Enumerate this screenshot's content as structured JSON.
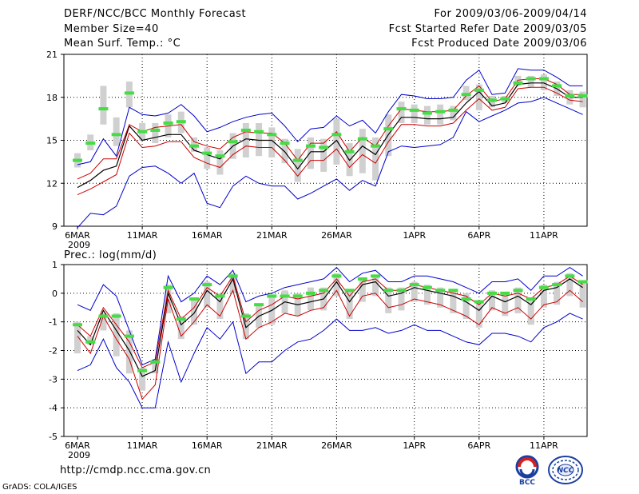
{
  "header": {
    "left_line1": "DERF/NCC/BCC Monthly Forecast",
    "left_line2": "Member Size=40",
    "left_line3": "Mean Surf. Temp.: °C",
    "right_line1": "For 2009/03/06-2009/04/14",
    "right_line2": "Fcst Started Refer Date 2009/03/05",
    "right_line3": "Fcst Produced Date 2009/03/06"
  },
  "footer": {
    "url": "http://cmdp.ncc.cma.gov.cn",
    "credit": "GrADS: COLA/IGES",
    "logo_left_label": "BCC",
    "logo_right_label": "NCC"
  },
  "colors": {
    "ensemble_mean": "#000000",
    "red_band": "#cc0000",
    "blue_envelope": "#0000cc",
    "box": "#d0d0d0",
    "marker": "#44dd44",
    "grid": "#000000"
  },
  "chart_data": [
    {
      "type": "line",
      "title": "Mean Surf. Temp.: °C",
      "x_dates": [
        "6MAR",
        "7MAR",
        "8MAR",
        "9MAR",
        "10MAR",
        "11MAR",
        "12MAR",
        "13MAR",
        "14MAR",
        "15MAR",
        "16MAR",
        "17MAR",
        "18MAR",
        "19MAR",
        "20MAR",
        "21MAR",
        "22MAR",
        "23MAR",
        "24MAR",
        "25MAR",
        "26MAR",
        "27MAR",
        "28MAR",
        "29MAR",
        "30MAR",
        "31MAR",
        "1APR",
        "2APR",
        "3APR",
        "4APR",
        "5APR",
        "6APR",
        "7APR",
        "8APR",
        "9APR",
        "10APR",
        "11APR",
        "12APR",
        "13APR",
        "14APR"
      ],
      "tick_labels": [
        "6MAR",
        "11MAR",
        "16MAR",
        "21MAR",
        "26MAR",
        "1APR",
        "6APR",
        "11APR"
      ],
      "year_label": "2009",
      "ylim": [
        9,
        21
      ],
      "yticks": [
        9,
        12,
        15,
        18,
        21
      ],
      "series": [
        {
          "name": "ensemble-mean",
          "values": [
            11.7,
            12.2,
            12.9,
            13.2,
            16.0,
            15.0,
            15.2,
            15.4,
            15.4,
            14.3,
            14.0,
            13.7,
            14.6,
            15.1,
            15.0,
            15.0,
            14.2,
            13.0,
            14.2,
            14.2,
            15.0,
            13.6,
            14.6,
            14.0,
            15.4,
            16.6,
            16.6,
            16.5,
            16.5,
            16.6,
            17.6,
            18.4,
            17.4,
            17.6,
            18.9,
            19.0,
            19.0,
            18.6,
            18.0,
            18.0
          ]
        },
        {
          "name": "upper-red",
          "values": [
            12.3,
            12.7,
            13.7,
            13.7,
            16.1,
            15.6,
            15.9,
            16.0,
            16.1,
            14.9,
            14.6,
            14.4,
            15.2,
            15.6,
            15.5,
            15.5,
            14.8,
            13.6,
            14.8,
            14.8,
            15.6,
            14.2,
            15.2,
            14.6,
            16.0,
            17.2,
            17.1,
            17.0,
            17.0,
            17.1,
            18.1,
            18.8,
            17.7,
            17.9,
            19.2,
            19.3,
            19.3,
            18.9,
            18.2,
            18.2
          ]
        },
        {
          "name": "lower-red",
          "values": [
            11.2,
            11.6,
            12.1,
            12.6,
            15.5,
            14.5,
            14.6,
            14.9,
            14.9,
            13.8,
            13.4,
            13.1,
            14.0,
            14.6,
            14.5,
            14.5,
            13.6,
            12.5,
            13.6,
            13.6,
            14.4,
            13.1,
            14.0,
            13.4,
            14.9,
            16.1,
            16.1,
            16.0,
            16.0,
            16.2,
            17.1,
            17.9,
            17.1,
            17.3,
            18.6,
            18.7,
            18.7,
            18.3,
            17.8,
            17.7
          ]
        },
        {
          "name": "max-envelope",
          "values": [
            13.3,
            13.5,
            15.1,
            13.9,
            17.3,
            16.8,
            16.7,
            16.9,
            17.5,
            16.7,
            15.6,
            15.9,
            16.3,
            16.6,
            16.8,
            16.9,
            16.0,
            14.9,
            15.8,
            15.9,
            16.7,
            16.0,
            16.4,
            15.5,
            17.0,
            18.2,
            18.1,
            17.9,
            17.9,
            18.0,
            19.2,
            19.9,
            18.2,
            18.3,
            20.0,
            19.9,
            19.9,
            19.4,
            18.8,
            18.8
          ]
        },
        {
          "name": "min-envelope",
          "values": [
            8.9,
            9.9,
            9.8,
            10.4,
            12.5,
            13.1,
            13.2,
            12.7,
            12.0,
            12.7,
            10.6,
            10.3,
            11.8,
            12.5,
            12.0,
            11.8,
            11.8,
            10.9,
            11.3,
            11.8,
            12.3,
            11.5,
            12.2,
            11.8,
            14.2,
            14.6,
            14.5,
            14.6,
            14.7,
            15.2,
            17.0,
            16.3,
            16.7,
            17.1,
            17.6,
            17.7,
            18.0,
            17.6,
            17.2,
            16.8
          ]
        }
      ],
      "boxes": {
        "q1": [
          13.1,
          14.3,
          16.1,
          14.6,
          17.3,
          15.0,
          14.8,
          15.2,
          15.5,
          14.2,
          13.0,
          12.6,
          13.7,
          13.8,
          13.9,
          13.8,
          13.4,
          12.1,
          13.0,
          12.8,
          13.3,
          12.5,
          12.7,
          12.2,
          13.9,
          16.2,
          16.2,
          16.1,
          16.1,
          16.4,
          17.8,
          17.1,
          17.3,
          17.6,
          18.8,
          18.7,
          18.5,
          18.1,
          17.5,
          17.3
        ],
        "q3": [
          14.1,
          15.4,
          18.8,
          16.6,
          19.1,
          16.2,
          16.2,
          16.8,
          17.0,
          15.2,
          14.5,
          14.3,
          15.5,
          16.2,
          16.2,
          15.9,
          15.1,
          14.4,
          15.2,
          15.1,
          16.5,
          14.8,
          15.8,
          15.2,
          16.8,
          17.7,
          17.5,
          17.4,
          17.5,
          17.4,
          18.8,
          18.9,
          18.1,
          18.1,
          19.5,
          19.5,
          19.6,
          19.1,
          18.5,
          18.4
        ]
      },
      "markers": [
        13.6,
        14.8,
        17.2,
        15.4,
        18.3,
        15.6,
        15.7,
        16.2,
        16.3,
        14.6,
        14.1,
        13.9,
        14.9,
        15.7,
        15.6,
        15.4,
        14.8,
        13.6,
        14.6,
        14.5,
        15.4,
        14.2,
        15.1,
        14.6,
        15.8,
        17.2,
        17.1,
        16.9,
        17.0,
        17.1,
        18.2,
        18.5,
        17.8,
        17.9,
        19.0,
        19.3,
        19.3,
        18.8,
        18.1,
        18.1
      ]
    },
    {
      "type": "line",
      "title": "Prec.: log(mm/d)",
      "x_dates": [
        "6MAR",
        "7MAR",
        "8MAR",
        "9MAR",
        "10MAR",
        "11MAR",
        "12MAR",
        "13MAR",
        "14MAR",
        "15MAR",
        "16MAR",
        "17MAR",
        "18MAR",
        "19MAR",
        "20MAR",
        "21MAR",
        "22MAR",
        "23MAR",
        "24MAR",
        "25MAR",
        "26MAR",
        "27MAR",
        "28MAR",
        "29MAR",
        "30MAR",
        "31MAR",
        "1APR",
        "2APR",
        "3APR",
        "4APR",
        "5APR",
        "6APR",
        "7APR",
        "8APR",
        "9APR",
        "10APR",
        "11APR",
        "12APR",
        "13APR",
        "14APR"
      ],
      "tick_labels": [
        "6MAR",
        "11MAR",
        "16MAR",
        "21MAR",
        "26MAR",
        "1APR",
        "6APR",
        "11APR"
      ],
      "year_label": "2009",
      "ylim": [
        -5,
        1
      ],
      "yticks": [
        -5,
        -4,
        -3,
        -2,
        -1,
        0,
        1
      ],
      "series": [
        {
          "name": "ensemble-mean",
          "values": [
            -1.3,
            -1.8,
            -0.6,
            -1.3,
            -2.0,
            -2.9,
            -2.7,
            0.0,
            -1.1,
            -0.7,
            0.1,
            -0.3,
            0.5,
            -1.2,
            -0.8,
            -0.6,
            -0.3,
            -0.4,
            -0.3,
            -0.2,
            0.4,
            -0.3,
            0.3,
            0.4,
            -0.1,
            0.0,
            0.2,
            0.1,
            0.0,
            -0.1,
            -0.3,
            -0.6,
            -0.1,
            -0.3,
            -0.1,
            -0.4,
            0.1,
            0.2,
            0.5,
            0.2
          ]
        },
        {
          "name": "upper-red",
          "values": [
            -1.1,
            -1.5,
            -0.5,
            -1.1,
            -1.7,
            -2.6,
            -2.4,
            0.1,
            -0.9,
            -0.5,
            0.2,
            -0.1,
            0.6,
            -1.0,
            -0.6,
            -0.4,
            -0.1,
            -0.2,
            -0.1,
            0.0,
            0.5,
            -0.1,
            0.4,
            0.5,
            0.1,
            0.1,
            0.3,
            0.2,
            0.1,
            0.0,
            -0.1,
            -0.4,
            0.0,
            -0.1,
            0.0,
            -0.2,
            0.2,
            0.3,
            0.6,
            0.3
          ]
        },
        {
          "name": "lower-red",
          "values": [
            -1.5,
            -2.1,
            -0.8,
            -1.6,
            -2.3,
            -3.7,
            -3.2,
            -0.2,
            -1.5,
            -1.0,
            -0.4,
            -0.8,
            0.1,
            -1.6,
            -1.2,
            -1.0,
            -0.7,
            -0.8,
            -0.6,
            -0.5,
            0.1,
            -0.8,
            -0.1,
            0.0,
            -0.5,
            -0.4,
            -0.2,
            -0.3,
            -0.4,
            -0.6,
            -0.8,
            -1.1,
            -0.5,
            -0.7,
            -0.5,
            -0.9,
            -0.4,
            -0.3,
            0.1,
            -0.3
          ]
        },
        {
          "name": "max-envelope",
          "values": [
            -0.4,
            -0.6,
            0.3,
            -0.1,
            -1.3,
            -2.5,
            -2.3,
            0.6,
            -0.3,
            0.0,
            0.6,
            0.3,
            0.8,
            -0.3,
            -0.1,
            0.0,
            0.2,
            0.3,
            0.4,
            0.5,
            0.9,
            0.4,
            0.7,
            0.8,
            0.4,
            0.4,
            0.6,
            0.6,
            0.5,
            0.4,
            0.2,
            0.0,
            0.4,
            0.4,
            0.5,
            0.1,
            0.6,
            0.6,
            0.9,
            0.6
          ]
        },
        {
          "name": "min-envelope",
          "values": [
            -2.7,
            -2.5,
            -1.6,
            -2.6,
            -3.1,
            -4.0,
            -4.0,
            -1.7,
            -3.1,
            -2.1,
            -1.2,
            -1.6,
            -1.0,
            -2.8,
            -2.4,
            -2.4,
            -2.0,
            -1.7,
            -1.6,
            -1.3,
            -0.9,
            -1.3,
            -1.3,
            -1.2,
            -1.4,
            -1.3,
            -1.1,
            -1.3,
            -1.3,
            -1.5,
            -1.7,
            -1.8,
            -1.4,
            -1.4,
            -1.5,
            -1.7,
            -1.2,
            -1.0,
            -0.7,
            -0.9
          ]
        }
      ],
      "boxes": {
        "q1": [
          -2.1,
          -1.8,
          -1.3,
          -2.2,
          -2.8,
          -3.4,
          -2.8,
          -0.7,
          -1.6,
          -1.1,
          -0.5,
          -0.9,
          0.0,
          -1.6,
          -1.2,
          -1.1,
          -0.7,
          -0.8,
          -0.6,
          -0.6,
          -0.1,
          -0.9,
          -0.3,
          -0.1,
          -0.7,
          -0.6,
          -0.3,
          -0.4,
          -0.5,
          -0.7,
          -0.9,
          -1.2,
          -0.6,
          -0.8,
          -0.7,
          -1.1,
          -0.5,
          -0.4,
          -0.1,
          -0.5
        ],
        "q3": [
          -1.0,
          -1.5,
          -0.7,
          -0.7,
          -1.3,
          -2.6,
          -2.3,
          0.3,
          -0.8,
          -0.2,
          0.4,
          0.0,
          0.7,
          -0.7,
          -0.4,
          -0.1,
          0.1,
          0.0,
          0.2,
          0.2,
          0.7,
          0.1,
          0.5,
          0.6,
          0.2,
          0.2,
          0.4,
          0.3,
          0.2,
          0.1,
          0.0,
          -0.3,
          0.1,
          0.0,
          0.2,
          -0.2,
          0.3,
          0.4,
          0.7,
          0.4
        ]
      },
      "markers": [
        -1.1,
        -1.7,
        -0.8,
        -0.8,
        -1.5,
        -2.7,
        -2.4,
        0.2,
        -0.9,
        -0.2,
        0.3,
        -0.1,
        0.6,
        -0.8,
        -0.4,
        -0.1,
        -0.1,
        -0.1,
        0.0,
        0.1,
        0.6,
        0.1,
        0.5,
        0.6,
        0.1,
        0.1,
        0.3,
        0.2,
        0.1,
        0.1,
        -0.2,
        -0.3,
        0.0,
        0.0,
        0.1,
        -0.2,
        0.2,
        0.3,
        0.6,
        0.4
      ]
    }
  ]
}
